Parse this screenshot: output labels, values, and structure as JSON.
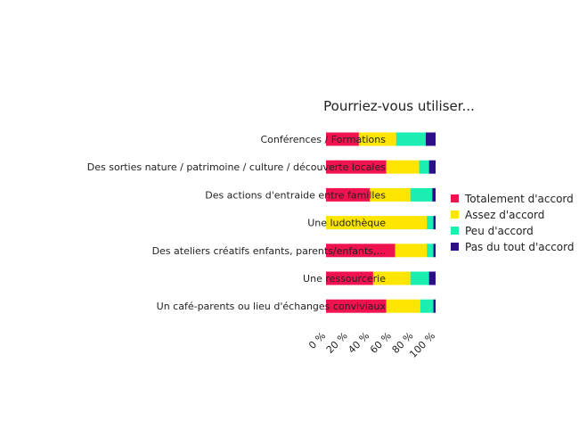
{
  "chart_data": {
    "type": "bar",
    "orientation": "horizontal",
    "stacked": true,
    "title": "Pourriez-vous utiliser...",
    "categories": [
      "Conférences / Formations",
      "Des sorties nature / patrimoine / culture / découverte locales",
      "Des actions d'entraide entre familles",
      "Une ludothèque",
      "Des ateliers créatifs enfants, parents/enfants,...",
      "Une ressourcerie",
      "Un café-parents ou lieu d'échanges conviviaux"
    ],
    "series": [
      {
        "name": "Totalement d'accord",
        "color": "#f0134f",
        "values": [
          30,
          55,
          40,
          0,
          63,
          43,
          55
        ]
      },
      {
        "name": "Assez d'accord",
        "color": "#fde500",
        "values": [
          34,
          30,
          37,
          92,
          29,
          34,
          31
        ]
      },
      {
        "name": "Peu d'accord",
        "color": "#1aeeb0",
        "values": [
          27,
          9,
          20,
          6,
          6,
          17,
          12
        ]
      },
      {
        "name": "Pas du tout d'accord",
        "color": "#2e0f8a",
        "values": [
          9,
          6,
          3,
          2,
          2,
          6,
          2
        ]
      }
    ],
    "xlim": [
      0,
      100
    ],
    "xticks": [
      "0 %",
      "20 %",
      "40 %",
      "60 %",
      "80 %",
      "100 %"
    ],
    "xlabel": "",
    "ylabel": "",
    "legend_position": "right",
    "grid": false
  }
}
